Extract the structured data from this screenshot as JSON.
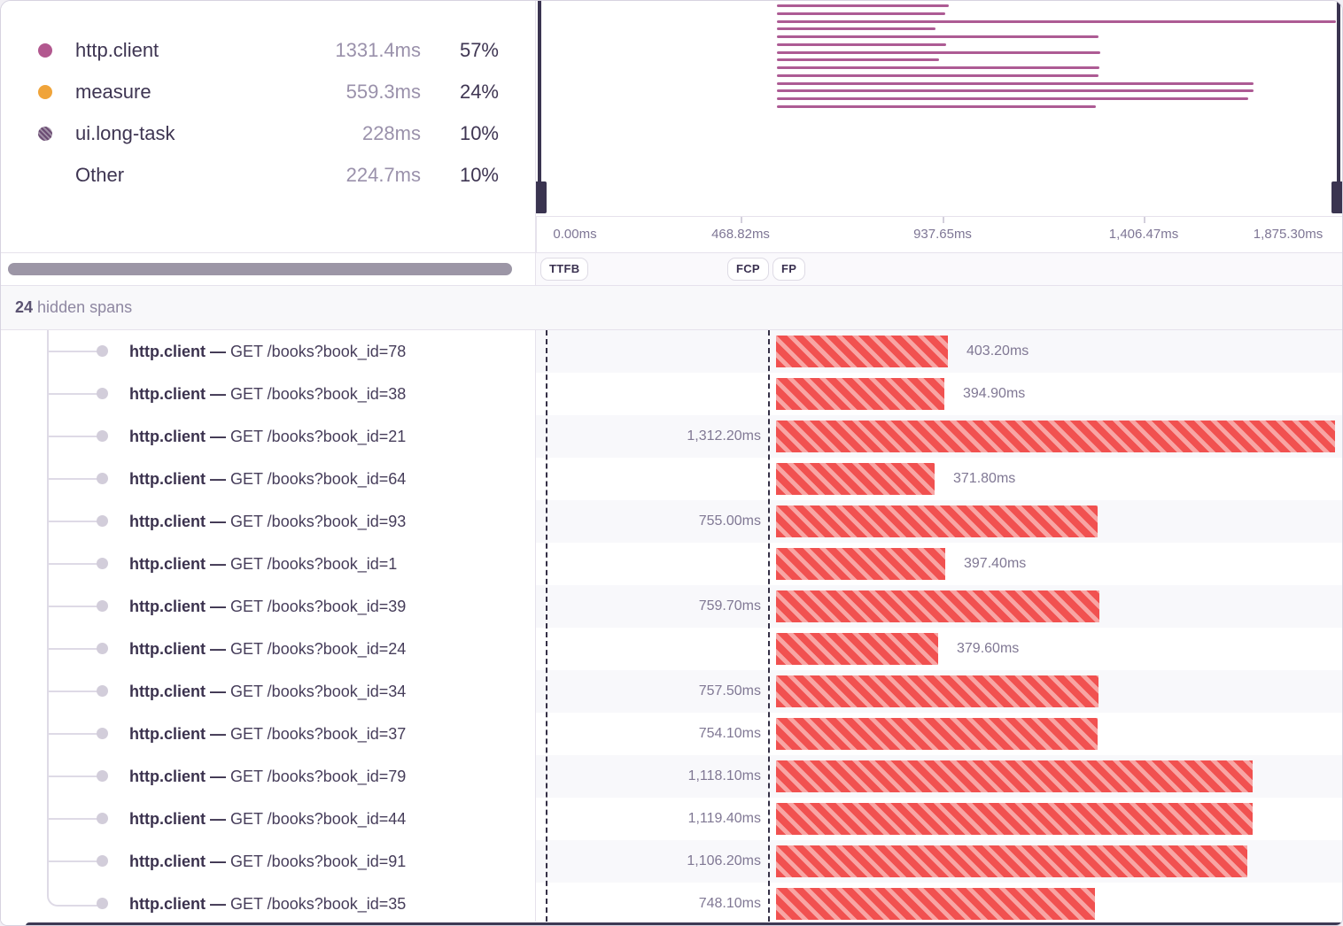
{
  "legend": {
    "items": [
      {
        "label": "http.client",
        "duration": "1331.4ms",
        "percent": "57%",
        "dot": "magenta"
      },
      {
        "label": "measure",
        "duration": "559.3ms",
        "percent": "24%",
        "dot": "orange"
      },
      {
        "label": "ui.long-task",
        "duration": "228ms",
        "percent": "10%",
        "dot": "purple-hatch"
      },
      {
        "label": "Other",
        "duration": "224.7ms",
        "percent": "10%",
        "dot": "none"
      }
    ]
  },
  "minimap": {
    "axis_ticks": [
      "0.00ms",
      "468.82ms",
      "937.65ms",
      "1,406.47ms",
      "1,875.30ms"
    ],
    "markers": [
      {
        "label": "TTFB"
      },
      {
        "label": "FCP"
      },
      {
        "label": "FP"
      }
    ],
    "bar_color": "#ad5b94"
  },
  "hidden_spans": {
    "count": "24",
    "label": "hidden spans"
  },
  "spans": [
    {
      "op": "http.client",
      "sep": "—",
      "description": "GET /books?book_id=78",
      "duration_ms": 403.2,
      "duration_label": "403.20ms",
      "label_side": "right"
    },
    {
      "op": "http.client",
      "sep": "—",
      "description": "GET /books?book_id=38",
      "duration_ms": 394.9,
      "duration_label": "394.90ms",
      "label_side": "right"
    },
    {
      "op": "http.client",
      "sep": "—",
      "description": "GET /books?book_id=21",
      "duration_ms": 1312.2,
      "duration_label": "1,312.20ms",
      "label_side": "left"
    },
    {
      "op": "http.client",
      "sep": "—",
      "description": "GET /books?book_id=64",
      "duration_ms": 371.8,
      "duration_label": "371.80ms",
      "label_side": "right"
    },
    {
      "op": "http.client",
      "sep": "—",
      "description": "GET /books?book_id=93",
      "duration_ms": 755.0,
      "duration_label": "755.00ms",
      "label_side": "left"
    },
    {
      "op": "http.client",
      "sep": "—",
      "description": "GET /books?book_id=1",
      "duration_ms": 397.4,
      "duration_label": "397.40ms",
      "label_side": "right"
    },
    {
      "op": "http.client",
      "sep": "—",
      "description": "GET /books?book_id=39",
      "duration_ms": 759.7,
      "duration_label": "759.70ms",
      "label_side": "left"
    },
    {
      "op": "http.client",
      "sep": "—",
      "description": "GET /books?book_id=24",
      "duration_ms": 379.6,
      "duration_label": "379.60ms",
      "label_side": "right"
    },
    {
      "op": "http.client",
      "sep": "—",
      "description": "GET /books?book_id=34",
      "duration_ms": 757.5,
      "duration_label": "757.50ms",
      "label_side": "left"
    },
    {
      "op": "http.client",
      "sep": "—",
      "description": "GET /books?book_id=37",
      "duration_ms": 754.1,
      "duration_label": "754.10ms",
      "label_side": "left"
    },
    {
      "op": "http.client",
      "sep": "—",
      "description": "GET /books?book_id=79",
      "duration_ms": 1118.1,
      "duration_label": "1,118.10ms",
      "label_side": "left"
    },
    {
      "op": "http.client",
      "sep": "—",
      "description": "GET /books?book_id=44",
      "duration_ms": 1119.4,
      "duration_label": "1,119.40ms",
      "label_side": "left"
    },
    {
      "op": "http.client",
      "sep": "—",
      "description": "GET /books?book_id=91",
      "duration_ms": 1106.2,
      "duration_label": "1,106.20ms",
      "label_side": "left"
    },
    {
      "op": "http.client",
      "sep": "—",
      "description": "GET /books?book_id=35",
      "duration_ms": 748.1,
      "duration_label": "748.10ms",
      "label_side": "left"
    }
  ],
  "colors": {
    "http_client": "#b2588f",
    "measure": "#f0a43a",
    "ui_long_task": "#7d5a85",
    "minimap_bar": "#ad5b94",
    "span_bar_stripe": "#f15150",
    "span_bar_bg": "#f8a5a4"
  }
}
